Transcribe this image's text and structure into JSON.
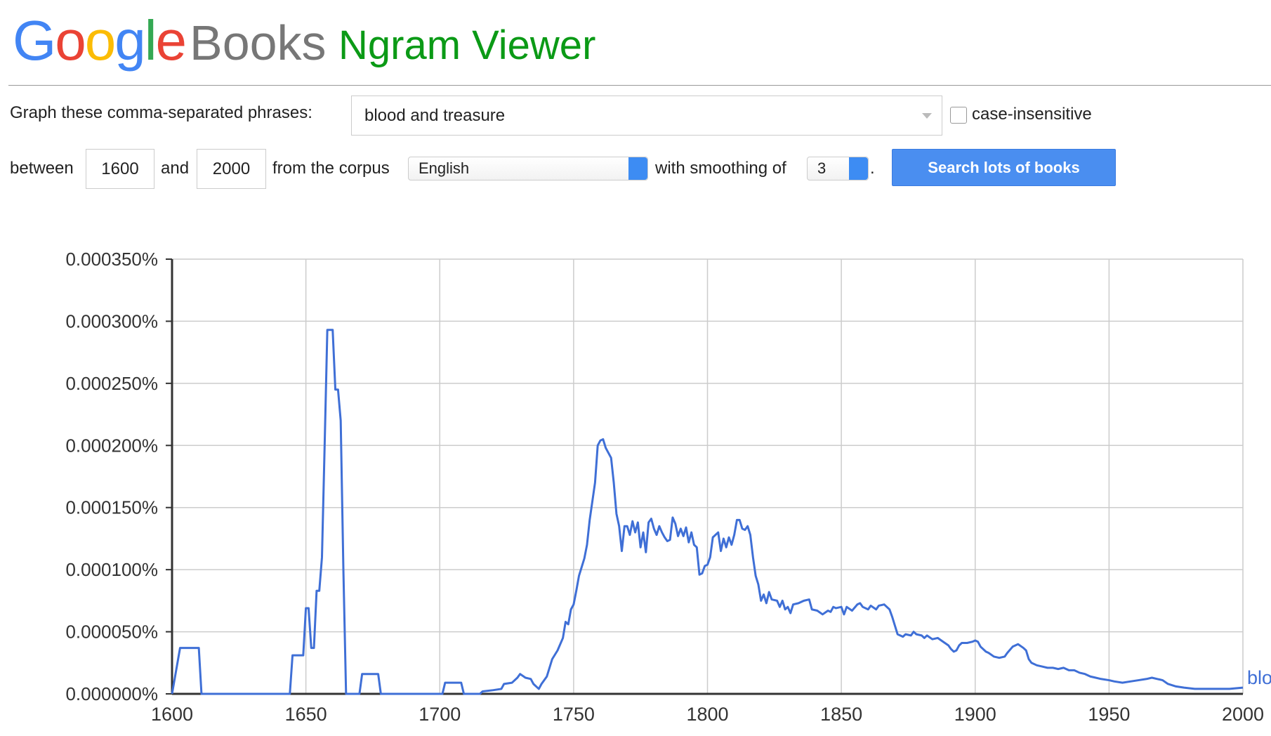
{
  "header": {
    "logo": "Google",
    "product": "Books",
    "app": "Ngram Viewer"
  },
  "form": {
    "phrases_label": "Graph these comma-separated phrases:",
    "query": "blood and treasure",
    "case_label": "case-insensitive",
    "between_label": "between",
    "start_year": 1600,
    "and_label": "and",
    "end_year": 2000,
    "corpus_label": "from the corpus",
    "corpus": "English",
    "smoothing_label": "with smoothing of",
    "smoothing": 3,
    "period": ".",
    "button": "Search lots of books"
  },
  "chart_data": {
    "type": "line",
    "x": [
      1600,
      1603,
      1610,
      1611,
      1644,
      1645,
      1649,
      1650,
      1651,
      1652,
      1653,
      1654,
      1655,
      1656,
      1657,
      1658,
      1660,
      1661,
      1662,
      1663,
      1664,
      1665,
      1670,
      1671,
      1677,
      1678,
      1701,
      1702,
      1708,
      1709,
      1715,
      1716,
      1720,
      1723,
      1724,
      1727,
      1729,
      1730,
      1732,
      1734,
      1735,
      1737,
      1738,
      1740,
      1742,
      1744,
      1746,
      1747,
      1748,
      1749,
      1750,
      1751,
      1752,
      1754,
      1755,
      1756,
      1758,
      1759,
      1760,
      1761,
      1762,
      1764,
      1765,
      1766,
      1767,
      1768,
      1769,
      1770,
      1771,
      1772,
      1773,
      1774,
      1775,
      1776,
      1777,
      1778,
      1779,
      1780,
      1781,
      1782,
      1783,
      1784,
      1785,
      1786,
      1787,
      1788,
      1789,
      1790,
      1791,
      1792,
      1793,
      1794,
      1795,
      1796,
      1797,
      1798,
      1799,
      1800,
      1801,
      1802,
      1803,
      1804,
      1805,
      1806,
      1807,
      1808,
      1809,
      1810,
      1811,
      1812,
      1813,
      1814,
      1815,
      1816,
      1817,
      1818,
      1819,
      1820,
      1821,
      1822,
      1823,
      1824,
      1826,
      1827,
      1828,
      1829,
      1830,
      1831,
      1832,
      1834,
      1836,
      1838,
      1839,
      1841,
      1843,
      1845,
      1846,
      1847,
      1848,
      1850,
      1851,
      1852,
      1854,
      1856,
      1857,
      1858,
      1860,
      1861,
      1863,
      1864,
      1866,
      1868,
      1869,
      1870,
      1871,
      1873,
      1874,
      1876,
      1877,
      1878,
      1880,
      1881,
      1882,
      1884,
      1886,
      1888,
      1890,
      1891,
      1892,
      1893,
      1894,
      1895,
      1897,
      1899,
      1900,
      1901,
      1902,
      1904,
      1905,
      1907,
      1909,
      1911,
      1912,
      1914,
      1916,
      1918,
      1919,
      1920,
      1921,
      1923,
      1925,
      1927,
      1929,
      1931,
      1933,
      1935,
      1937,
      1939,
      1941,
      1943,
      1945,
      1947,
      1950,
      1952,
      1955,
      1958,
      1961,
      1964,
      1966,
      1968,
      1970,
      1972,
      1975,
      1978,
      1982,
      1988,
      1995,
      2000
    ],
    "series": [
      {
        "name": "blood and treasure",
        "color": "#3f6fd6",
        "values": [
          0,
          3.7e-05,
          3.7e-05,
          0,
          0,
          3.1e-05,
          3.1e-05,
          6.9e-05,
          6.9e-05,
          3.7e-05,
          3.7e-05,
          8.3e-05,
          8.3e-05,
          0.00011,
          0.0002,
          0.000293,
          0.000293,
          0.000245,
          0.000245,
          0.00022,
          0.0001,
          0,
          0,
          1.6e-05,
          1.6e-05,
          0,
          0,
          9e-06,
          9e-06,
          0,
          0,
          2e-06,
          3e-06,
          4e-06,
          8e-06,
          9e-06,
          1.3e-05,
          1.6e-05,
          1.3e-05,
          1.2e-05,
          8e-06,
          4e-06,
          8e-06,
          1.4e-05,
          2.8e-05,
          3.5e-05,
          4.5e-05,
          5.8e-05,
          5.6e-05,
          6.8e-05,
          7.2e-05,
          8.3e-05,
          9.5e-05,
          0.000109,
          0.00012,
          0.00014,
          0.00017,
          0.0002,
          0.000204,
          0.000205,
          0.000198,
          0.00019,
          0.00017,
          0.000145,
          0.000135,
          0.000115,
          0.000135,
          0.000135,
          0.000128,
          0.000139,
          0.00013,
          0.000138,
          0.000118,
          0.00013,
          0.000114,
          0.000138,
          0.000141,
          0.000133,
          0.000128,
          0.000135,
          0.00013,
          0.000126,
          0.000123,
          0.000124,
          0.000142,
          0.000137,
          0.000127,
          0.000133,
          0.000127,
          0.000134,
          0.000122,
          0.00013,
          0.00012,
          0.000118,
          9.6e-05,
          9.7e-05,
          0.000103,
          0.000104,
          0.00011,
          0.000126,
          0.000128,
          0.00013,
          0.000115,
          0.000125,
          0.000118,
          0.000126,
          0.00012,
          0.000128,
          0.00014,
          0.00014,
          0.000133,
          0.000132,
          0.000135,
          0.000128,
          0.00011,
          9.5e-05,
          8.8e-05,
          7.5e-05,
          8e-05,
          7.3e-05,
          8.2e-05,
          7.6e-05,
          7.5e-05,
          7e-05,
          7.5e-05,
          6.8e-05,
          7e-05,
          6.5e-05,
          7.2e-05,
          7.3e-05,
          7.5e-05,
          7.6e-05,
          6.8e-05,
          6.7e-05,
          6.4e-05,
          6.7e-05,
          6.6e-05,
          7e-05,
          6.9e-05,
          7e-05,
          6.4e-05,
          7e-05,
          6.7e-05,
          7.2e-05,
          7.3e-05,
          7e-05,
          6.8e-05,
          7.1e-05,
          6.8e-05,
          7.1e-05,
          7.2e-05,
          6.8e-05,
          6.2e-05,
          5.5e-05,
          4.8e-05,
          4.6e-05,
          4.8e-05,
          4.7e-05,
          5e-05,
          4.8e-05,
          4.7e-05,
          4.5e-05,
          4.7e-05,
          4.4e-05,
          4.5e-05,
          4.2e-05,
          3.9e-05,
          3.6e-05,
          3.4e-05,
          3.5e-05,
          3.9e-05,
          4.1e-05,
          4.1e-05,
          4.2e-05,
          4.3e-05,
          4.2e-05,
          3.8e-05,
          3.4e-05,
          3.3e-05,
          3e-05,
          2.9e-05,
          3e-05,
          3.3e-05,
          3.8e-05,
          4e-05,
          3.7e-05,
          3.5e-05,
          2.8e-05,
          2.5e-05,
          2.3e-05,
          2.2e-05,
          2.1e-05,
          2.1e-05,
          2e-05,
          2.1e-05,
          1.9e-05,
          1.9e-05,
          1.7e-05,
          1.6e-05,
          1.4e-05,
          1.3e-05,
          1.2e-05,
          1.1e-05,
          1e-05,
          9e-06,
          1e-05,
          1.1e-05,
          1.2e-05,
          1.3e-05,
          1.2e-05,
          1.1e-05,
          8e-06,
          6e-06,
          5e-06,
          4e-06,
          4e-06,
          4e-06,
          5e-06
        ]
      }
    ],
    "xlim": [
      1600,
      2000
    ],
    "xticks": [
      1600,
      1650,
      1700,
      1750,
      1800,
      1850,
      1900,
      1950,
      2000
    ],
    "ylim": [
      0,
      0.00035
    ],
    "yticks": [
      {
        "value": 0,
        "label": "0.000000%"
      },
      {
        "value": 5e-05,
        "label": "0.000050%"
      },
      {
        "value": 0.0001,
        "label": "0.000100%"
      },
      {
        "value": 0.00015,
        "label": "0.000150%"
      },
      {
        "value": 0.0002,
        "label": "0.000200%"
      },
      {
        "value": 0.00025,
        "label": "0.000250%"
      },
      {
        "value": 0.0003,
        "label": "0.000300%"
      },
      {
        "value": 0.00035,
        "label": "0.000350%"
      }
    ],
    "grid": true
  }
}
